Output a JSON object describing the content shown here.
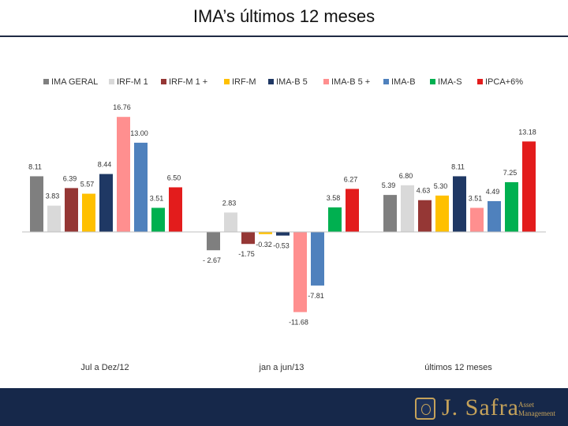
{
  "title": "IMA’s últimos 12 meses",
  "chart_data": {
    "type": "bar",
    "title": "IMA’s últimos 12 meses",
    "categories": [
      "Jul a Dez/12",
      "jan a jun/13",
      "últimos 12 meses"
    ],
    "series": [
      {
        "name": "IMA GERAL",
        "color": "#7f7f7f",
        "values": [
          8.11,
          -2.67,
          5.39
        ],
        "labels": [
          "8.11",
          "- 2.67",
          "5.39"
        ]
      },
      {
        "name": "IRF-M 1",
        "color": "#d9d9d9",
        "values": [
          3.83,
          2.83,
          6.8
        ],
        "labels": [
          "3.83",
          "2.83",
          "6.80"
        ]
      },
      {
        "name": "IRF-M 1 +",
        "color": "#953735",
        "values": [
          6.39,
          -1.75,
          4.63
        ],
        "labels": [
          "6.39",
          "-1.75",
          "4.63"
        ]
      },
      {
        "name": "IRF-M",
        "color": "#ffc000",
        "values": [
          5.57,
          -0.32,
          5.3
        ],
        "labels": [
          "5.57",
          "-0.32",
          "5.30"
        ]
      },
      {
        "name": "IMA-B 5",
        "color": "#1f3864",
        "values": [
          8.44,
          -0.53,
          8.11
        ],
        "labels": [
          "8.44",
          "-0.53",
          "8.11"
        ]
      },
      {
        "name": "IMA-B 5 +",
        "color": "#ff8f8f",
        "values": [
          16.76,
          -11.68,
          3.51
        ],
        "labels": [
          "16.76",
          "-11.68",
          "3.51"
        ]
      },
      {
        "name": "IMA-B",
        "color": "#4f81bd",
        "values": [
          13.0,
          -7.81,
          4.49
        ],
        "labels": [
          "13.00",
          "-7.81",
          "4.49"
        ]
      },
      {
        "name": "IMA-S",
        "color": "#00b050",
        "values": [
          3.51,
          3.58,
          7.25
        ],
        "labels": [
          "3.51",
          "3.58",
          "7.25"
        ]
      },
      {
        "name": "IPCA+6%",
        "color": "#e31c1c",
        "values": [
          6.5,
          6.27,
          13.18
        ],
        "labels": [
          "6.50",
          "6.27",
          "13.18"
        ]
      }
    ],
    "ylim": [
      -12.5,
      17.5
    ],
    "grid": false,
    "legend": "top",
    "xlabel": "",
    "ylabel": ""
  },
  "footer": {
    "brand": "J. Safra",
    "sub_line1": "Asset",
    "sub_line2": "Management"
  }
}
